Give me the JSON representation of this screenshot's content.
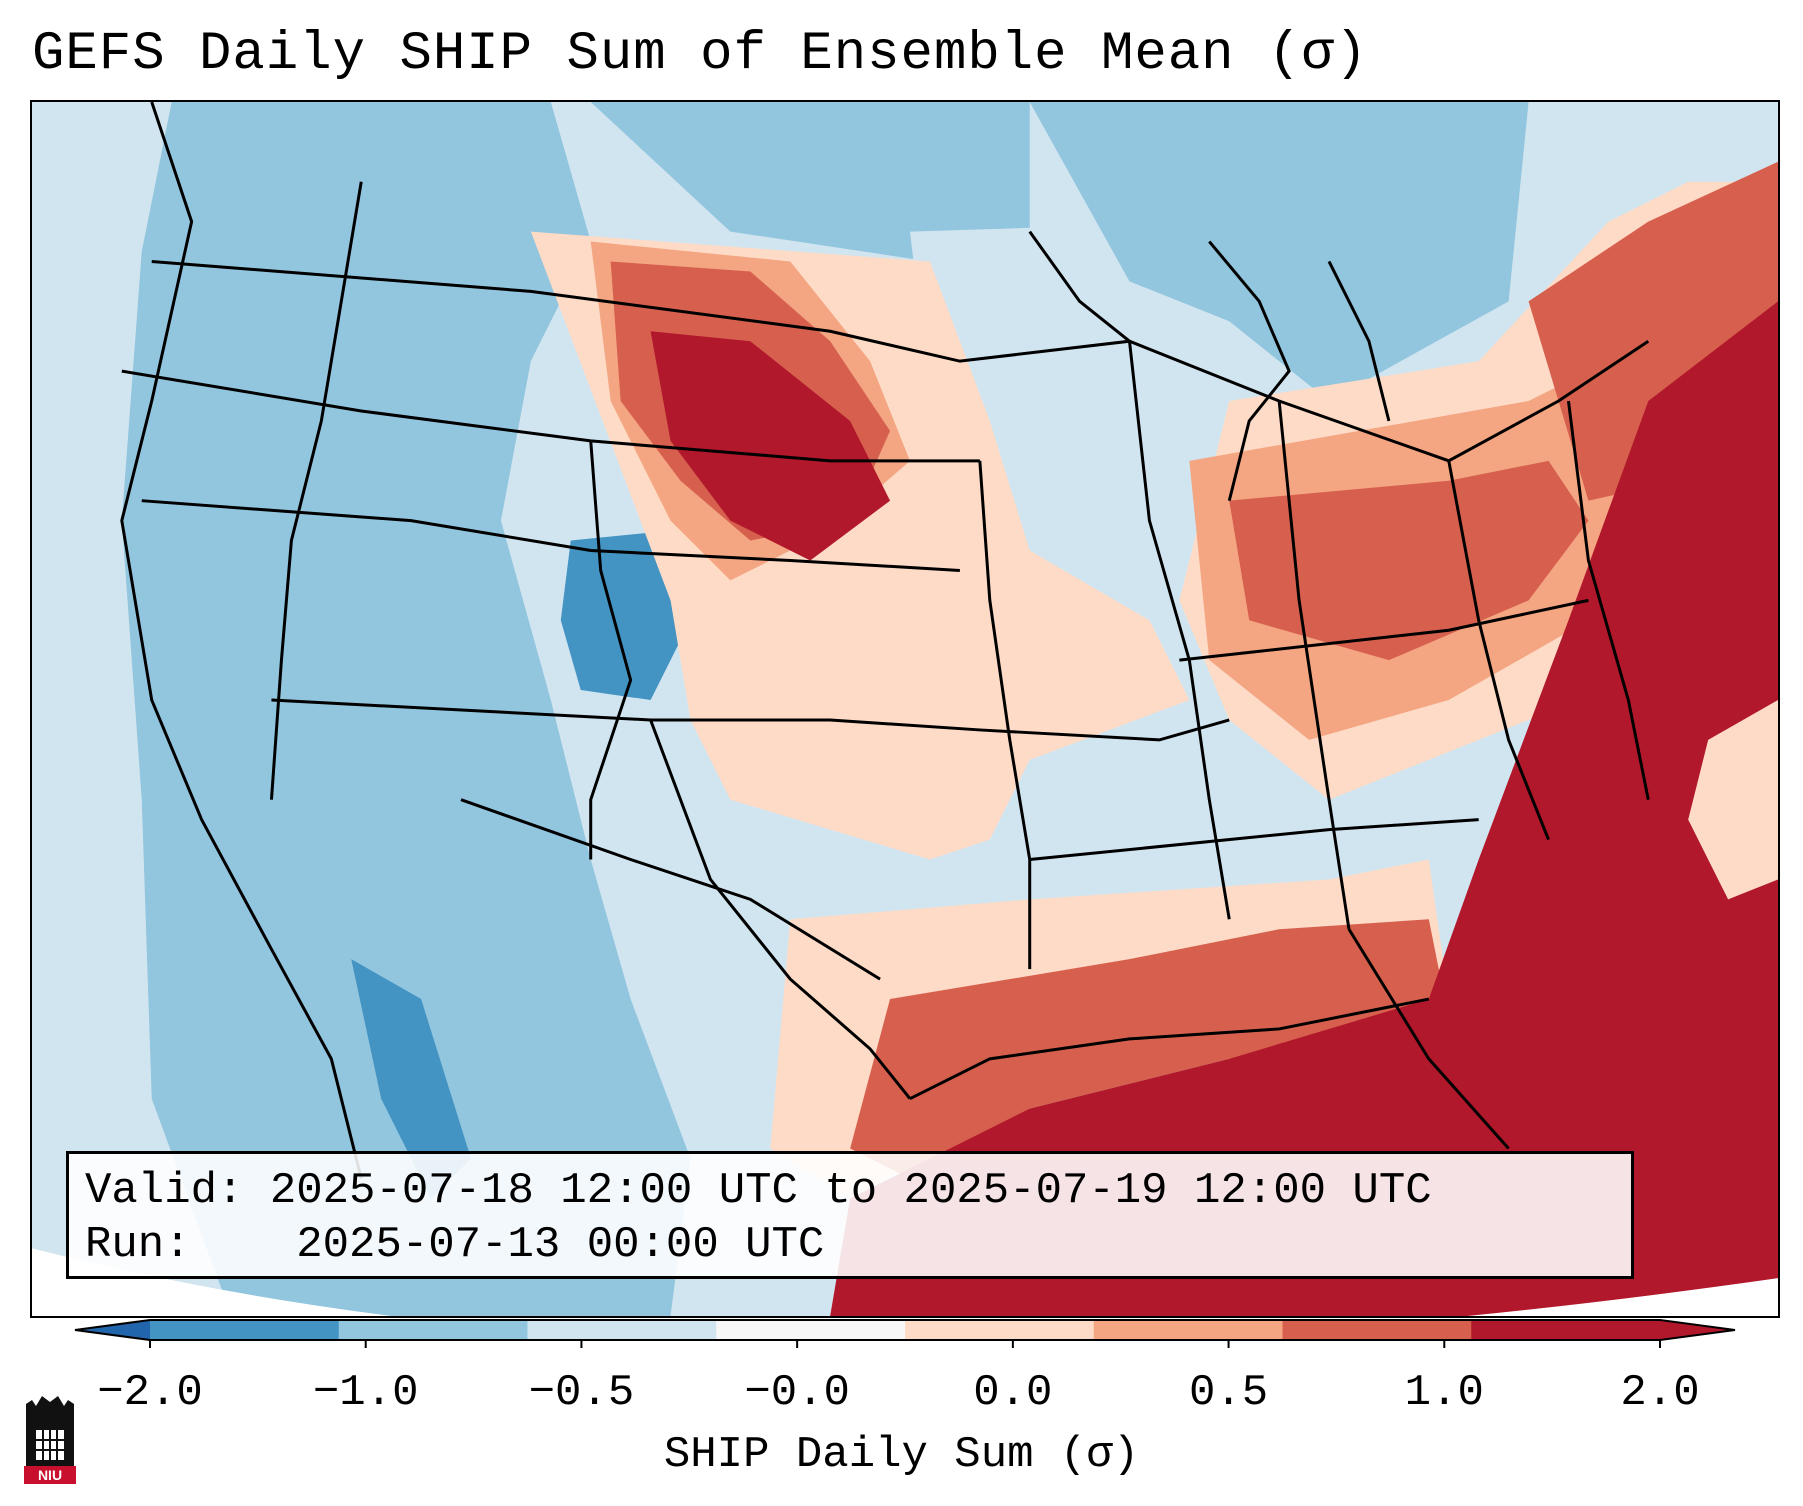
{
  "title": "GEFS Daily SHIP Sum of Ensemble Mean (σ)",
  "info": {
    "valid_label": "Valid:",
    "valid_value": "2025-07-18 12:00 UTC to 2025-07-19 12:00 UTC",
    "run_label": "Run:  ",
    "run_value": "2025-07-13 00:00 UTC"
  },
  "colorbar": {
    "label": "SHIP Daily Sum (σ)",
    "ticks": [
      "−2.0",
      "−1.0",
      "−0.5",
      "−0.0",
      "0.0",
      "0.5",
      "1.0",
      "2.0"
    ],
    "colors": [
      "#4393c3",
      "#92c5de",
      "#d1e5f0",
      "#f7f7f7",
      "#fddbc7",
      "#f4a582",
      "#d6604d",
      "#b2182b"
    ],
    "under_color": "#2166ac",
    "over_color": "#b2182b"
  },
  "logo": {
    "text": "NIU"
  }
}
